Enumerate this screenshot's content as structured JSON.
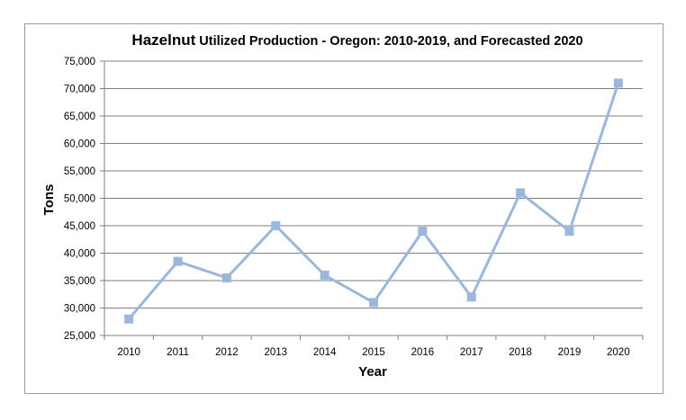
{
  "chart_data": {
    "type": "line",
    "title_main": "Hazelnut",
    "title_rest": " Utilized Production - Oregon: 2010-2019, and Forecasted 2020",
    "xlabel": "Year",
    "ylabel": "Tons",
    "categories": [
      "2010",
      "2011",
      "2012",
      "2013",
      "2014",
      "2015",
      "2016",
      "2017",
      "2018",
      "2019",
      "2020"
    ],
    "series": [
      {
        "name": "Utilized Production",
        "values": [
          28000,
          38500,
          35500,
          45000,
          36000,
          31000,
          44000,
          32000,
          51000,
          44000,
          71000
        ]
      }
    ],
    "ylim": [
      25000,
      75000
    ],
    "ytick_step": 5000,
    "ytick_labels": [
      "25,000",
      "30,000",
      "35,000",
      "40,000",
      "45,000",
      "50,000",
      "55,000",
      "60,000",
      "65,000",
      "70,000",
      "75,000"
    ],
    "grid": true,
    "legend": "none",
    "colors": {
      "line": "#9bb7dc",
      "marker": "#9bb7dc",
      "grid": "#7f7f7f",
      "axis": "#7f7f7f"
    }
  }
}
